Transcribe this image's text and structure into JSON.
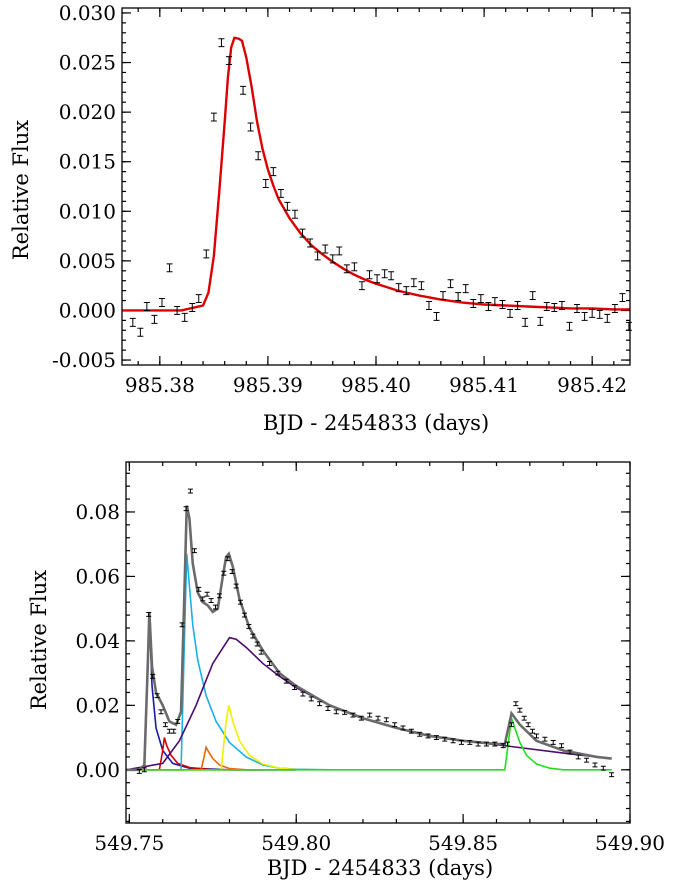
{
  "chart_data": [
    {
      "type": "scatter",
      "xlabel": "BJD - 2454833 (days)",
      "ylabel": "Relative Flux",
      "xlim": [
        985.3765,
        985.4235
      ],
      "ylim": [
        -0.0055,
        0.0305
      ],
      "x_ticks": [
        985.38,
        985.39,
        985.4,
        985.41,
        985.42
      ],
      "x_tick_labels": [
        "985.38",
        "985.39",
        "985.40",
        "985.41",
        "985.42"
      ],
      "y_ticks": [
        -0.005,
        0.0,
        0.005,
        0.01,
        0.015,
        0.02,
        0.025,
        0.03
      ],
      "y_tick_labels": [
        "-0.005",
        "0.000",
        "0.005",
        "0.010",
        "0.015",
        "0.020",
        "0.025",
        "0.030"
      ],
      "points": {
        "x": [
          985.3775,
          985.3782,
          985.3788,
          985.3795,
          985.3802,
          985.3809,
          985.3816,
          985.3823,
          985.383,
          985.3836,
          985.3843,
          985.385,
          985.3857,
          985.3864,
          985.3877,
          985.3884,
          985.3891,
          985.3898,
          985.3905,
          985.3912,
          985.3918,
          985.3925,
          985.3932,
          985.3939,
          985.3946,
          985.3953,
          985.396,
          985.3966,
          985.3973,
          985.398,
          985.3987,
          985.3994,
          985.4001,
          985.4008,
          985.4014,
          985.4021,
          985.4028,
          985.4035,
          985.4042,
          985.4049,
          985.4056,
          985.4062,
          985.4069,
          985.4076,
          985.4083,
          985.409,
          985.4097,
          985.4104,
          985.411,
          985.4117,
          985.4124,
          985.4131,
          985.4138,
          985.4145,
          985.4152,
          985.4158,
          985.4165,
          985.4172,
          985.4179,
          985.4186,
          985.4193,
          985.42,
          985.4207,
          985.4214,
          985.4221,
          985.4228,
          985.4234
        ],
        "y": [
          -0.0012,
          -0.0022,
          0.0004,
          -0.0009,
          0.0008,
          0.0043,
          0.0,
          -0.0007,
          0.0003,
          0.0012,
          0.0057,
          0.0195,
          0.027,
          0.0252,
          0.0222,
          0.0185,
          0.0156,
          0.0128,
          0.014,
          0.0118,
          0.0105,
          0.0097,
          0.0078,
          0.0068,
          0.0055,
          0.0062,
          0.0052,
          0.006,
          0.0042,
          0.0044,
          0.0025,
          0.0036,
          0.0032,
          0.0037,
          0.0035,
          0.0023,
          0.002,
          0.0028,
          0.0025,
          0.0005,
          -0.0006,
          0.0015,
          0.0027,
          0.0014,
          0.0022,
          0.0007,
          0.0012,
          0.0004,
          0.0009,
          0.0006,
          -0.0003,
          0.0005,
          -0.0012,
          0.0015,
          -0.0011,
          0.0004,
          0.0003,
          0.0005,
          -0.0016,
          0.0002,
          -0.0006,
          -0.0003,
          -0.0004,
          -0.0008,
          0.0002,
          0.0013,
          -0.0016
        ],
        "err": 0.0004,
        "color": "#000000"
      },
      "model": {
        "color": "#dd0000",
        "x": [
          985.3765,
          985.382,
          985.384,
          985.3845,
          985.385,
          985.3855,
          985.386,
          985.3863,
          985.3866,
          985.3869,
          985.3873,
          985.3876,
          985.388,
          985.3885,
          985.389,
          985.3895,
          985.39,
          985.3905,
          985.391,
          985.392,
          985.393,
          985.394,
          985.395,
          985.396,
          985.397,
          985.398,
          985.399,
          985.4,
          985.402,
          985.404,
          985.406,
          985.408,
          985.41,
          985.412,
          985.414,
          985.416,
          985.418,
          985.42,
          985.422,
          985.4235
        ],
        "y": [
          0.0,
          0.0,
          0.0005,
          0.0018,
          0.0055,
          0.012,
          0.019,
          0.0235,
          0.0265,
          0.0275,
          0.0274,
          0.0272,
          0.0255,
          0.0225,
          0.019,
          0.0163,
          0.0142,
          0.0126,
          0.0112,
          0.0093,
          0.0078,
          0.0066,
          0.0057,
          0.0049,
          0.0042,
          0.0036,
          0.0031,
          0.0027,
          0.002,
          0.0015,
          0.0011,
          0.0008,
          0.0006,
          0.0005,
          0.0004,
          0.0003,
          0.0002,
          0.0002,
          0.0001,
          0.0001
        ]
      }
    },
    {
      "type": "line",
      "xlabel": "BJD - 2454833 (days)",
      "ylabel": "Relative Flux",
      "xlim": [
        549.749,
        549.9
      ],
      "ylim": [
        -0.0165,
        0.0955
      ],
      "x_ticks": [
        549.75,
        549.8,
        549.85,
        549.9
      ],
      "x_tick_labels": [
        "549.75",
        "549.80",
        "549.85",
        "549.90"
      ],
      "y_ticks": [
        0.0,
        0.02,
        0.04,
        0.06,
        0.08
      ],
      "y_tick_labels": [
        "0.00",
        "0.02",
        "0.04",
        "0.06",
        "0.08"
      ],
      "points": {
        "x": [
          549.753,
          549.7545,
          549.7558,
          549.757,
          549.7583,
          549.7595,
          549.7608,
          549.762,
          549.7633,
          549.7645,
          549.7658,
          549.767,
          549.7683,
          549.7695,
          549.7708,
          549.772,
          549.7733,
          549.7745,
          549.7758,
          549.777,
          549.7783,
          549.7795,
          549.7808,
          549.782,
          549.7833,
          549.7845,
          549.7858,
          549.787,
          549.7883,
          549.7895,
          549.792,
          549.7945,
          549.797,
          549.7995,
          549.802,
          549.8045,
          549.807,
          549.8095,
          549.812,
          549.8145,
          549.817,
          549.8195,
          549.822,
          549.8245,
          549.827,
          549.8295,
          549.832,
          549.8345,
          549.837,
          549.8395,
          549.842,
          549.8445,
          549.847,
          549.8495,
          549.852,
          549.8545,
          549.857,
          549.8595,
          549.862,
          549.8633,
          549.8645,
          549.8658,
          549.867,
          549.8683,
          549.8695,
          549.8708,
          549.872,
          549.8745,
          549.877,
          549.8795,
          549.882,
          549.8845,
          549.887,
          549.8895,
          549.892,
          549.8945
        ],
        "y": [
          -0.0005,
          0.0,
          0.0482,
          0.029,
          0.023,
          0.018,
          0.014,
          0.012,
          0.012,
          0.015,
          0.045,
          0.081,
          0.0865,
          0.068,
          0.056,
          0.053,
          0.0545,
          0.0525,
          0.0505,
          0.054,
          0.061,
          0.0655,
          0.0615,
          0.057,
          0.052,
          0.048,
          0.0445,
          0.0415,
          0.039,
          0.0365,
          0.033,
          0.03,
          0.0275,
          0.0255,
          0.0235,
          0.022,
          0.0205,
          0.019,
          0.018,
          0.0178,
          0.017,
          0.016,
          0.017,
          0.016,
          0.0155,
          0.014,
          0.013,
          0.012,
          0.011,
          0.0105,
          0.01,
          0.0095,
          0.009,
          0.0085,
          0.0085,
          0.008,
          0.008,
          0.008,
          0.0075,
          0.008,
          0.014,
          0.0205,
          0.0185,
          0.016,
          0.014,
          0.012,
          0.0105,
          0.0095,
          0.0085,
          0.0075,
          0.0055,
          0.004,
          0.003,
          0.0015,
          0.0005,
          -0.0015
        ],
        "err": 0.0006,
        "color": "#000000"
      },
      "series": [
        {
          "color": "#1a1aa6",
          "x": [
            549.749,
            549.7545,
            549.7555,
            549.756,
            549.7568,
            549.758,
            549.76,
            549.763,
            549.768,
            549.78,
            549.8
          ],
          "y": [
            0.0,
            0.0,
            0.03,
            0.048,
            0.026,
            0.013,
            0.006,
            0.002,
            0.0005,
            0.0,
            0.0
          ]
        },
        {
          "color": "#d40000",
          "x": [
            549.749,
            549.759,
            549.76,
            549.7605,
            549.7612,
            549.7625,
            549.7645,
            549.768,
            549.775,
            549.79
          ],
          "y": [
            0.0,
            0.0,
            0.006,
            0.01,
            0.0075,
            0.0045,
            0.002,
            0.0007,
            0.0,
            0.0
          ]
        },
        {
          "color": "#1ab0e8",
          "x": [
            549.749,
            549.7655,
            549.7665,
            549.7672,
            549.768,
            549.769,
            549.7705,
            549.773,
            549.776,
            549.78,
            549.785,
            549.79,
            549.795,
            549.8,
            549.81
          ],
          "y": [
            0.0,
            0.0,
            0.04,
            0.067,
            0.057,
            0.045,
            0.034,
            0.023,
            0.015,
            0.0085,
            0.004,
            0.0015,
            0.0005,
            0.0002,
            0.0
          ]
        },
        {
          "color": "#ee6600",
          "x": [
            549.749,
            549.7715,
            549.7725,
            549.773,
            549.7738,
            549.775,
            549.777,
            549.78,
            549.785,
            549.8
          ],
          "y": [
            0.0,
            0.0,
            0.0045,
            0.007,
            0.0055,
            0.0035,
            0.0015,
            0.0004,
            0.0,
            0.0
          ]
        },
        {
          "color": "#f0f000",
          "x": [
            549.749,
            549.7775,
            549.779,
            549.7798,
            549.781,
            549.783,
            549.786,
            549.79,
            549.795,
            549.8,
            549.81
          ],
          "y": [
            0.0,
            0.0,
            0.015,
            0.02,
            0.015,
            0.009,
            0.0045,
            0.0018,
            0.0005,
            0.0001,
            0.0
          ]
        },
        {
          "color": "#4b0a6e",
          "x": [
            549.749,
            549.76,
            549.765,
            549.77,
            549.775,
            549.78,
            549.782,
            549.785,
            549.79,
            549.795,
            549.8,
            549.81,
            549.82,
            549.83,
            549.84,
            549.85,
            549.86,
            549.87,
            549.88,
            549.89,
            549.8945
          ],
          "y": [
            0.0,
            0.002,
            0.009,
            0.02,
            0.033,
            0.041,
            0.0405,
            0.038,
            0.033,
            0.029,
            0.0255,
            0.02,
            0.016,
            0.013,
            0.0105,
            0.009,
            0.0078,
            0.0065,
            0.0052,
            0.004,
            0.0035
          ]
        },
        {
          "color": "#22dd22",
          "x": [
            549.749,
            549.8625,
            549.8635,
            549.8645,
            549.8655,
            549.867,
            549.869,
            549.872,
            549.876,
            549.88,
            549.8945
          ],
          "y": [
            0.0,
            0.0,
            0.008,
            0.016,
            0.013,
            0.0085,
            0.0045,
            0.0018,
            0.0005,
            0.0,
            0.0
          ]
        },
        {
          "color": "#6b6b6b",
          "x": [
            549.749,
            549.753,
            549.7545,
            549.7555,
            549.756,
            549.7568,
            549.758,
            549.76,
            549.762,
            549.764,
            549.7655,
            549.7665,
            549.7672,
            549.768,
            549.769,
            549.7705,
            549.772,
            549.7735,
            549.775,
            549.7765,
            549.778,
            549.779,
            549.7798,
            549.781,
            549.783,
            549.786,
            549.79,
            549.795,
            549.8,
            549.81,
            549.82,
            549.83,
            549.84,
            549.85,
            549.86,
            549.8625,
            549.8645,
            549.867,
            549.872,
            549.88,
            549.89,
            549.8945
          ],
          "y": [
            0.0,
            0.0,
            0.0015,
            0.032,
            0.049,
            0.032,
            0.024,
            0.02,
            0.015,
            0.014,
            0.018,
            0.055,
            0.082,
            0.078,
            0.064,
            0.055,
            0.052,
            0.051,
            0.049,
            0.05,
            0.06,
            0.066,
            0.067,
            0.063,
            0.053,
            0.044,
            0.037,
            0.03,
            0.026,
            0.02,
            0.016,
            0.013,
            0.0105,
            0.009,
            0.008,
            0.008,
            0.0175,
            0.014,
            0.009,
            0.006,
            0.004,
            0.0035
          ]
        }
      ]
    }
  ]
}
